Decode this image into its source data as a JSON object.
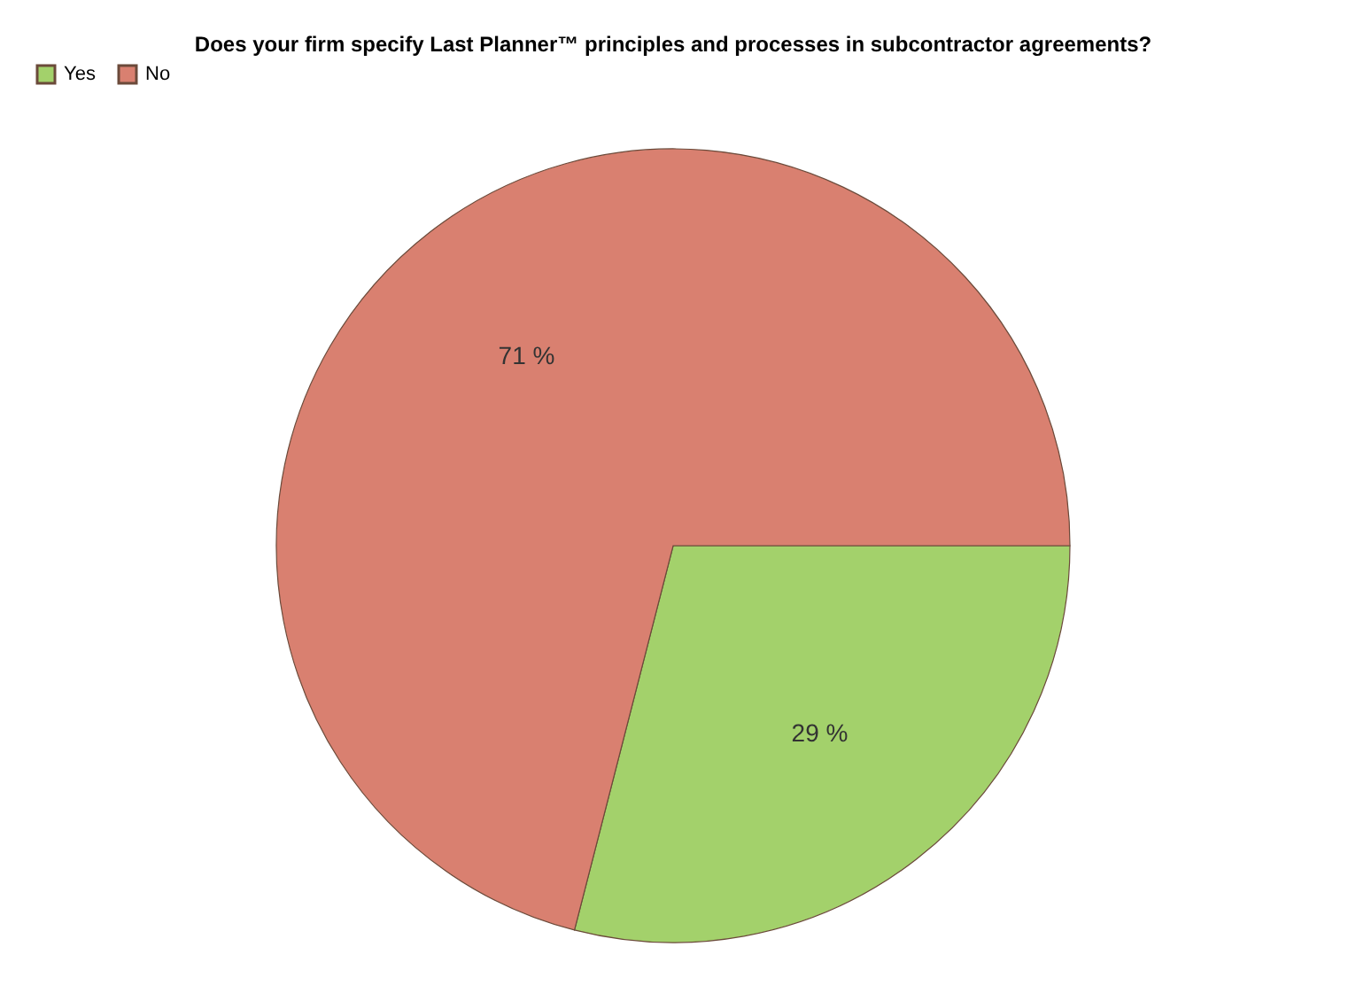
{
  "chart_data": {
    "type": "pie",
    "title": "Does your firm specify Last Planner™ principles and processes in subcontractor agreements?",
    "categories": [
      "Yes",
      "No"
    ],
    "values": [
      29,
      71
    ],
    "colors": [
      "#a3d16b",
      "#d98070"
    ],
    "value_labels": [
      "29 %",
      "71 %"
    ],
    "legend": "top"
  }
}
